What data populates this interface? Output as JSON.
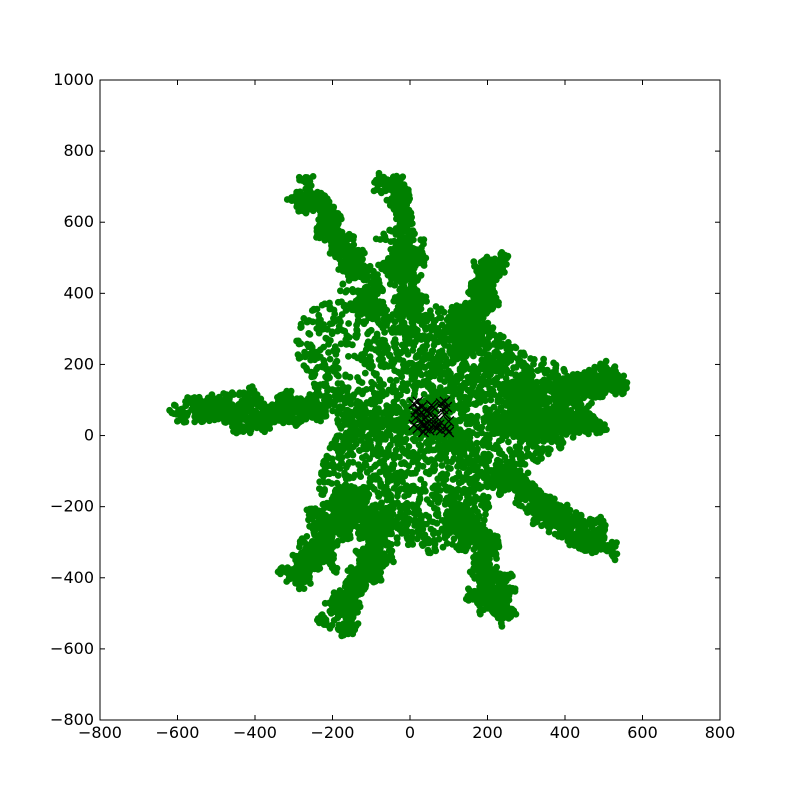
{
  "chart_data": {
    "type": "scatter",
    "title": "",
    "xlabel": "",
    "ylabel": "",
    "xlim": [
      -800,
      800
    ],
    "ylim": [
      -800,
      1000
    ],
    "x_ticks": [
      -800,
      -600,
      -400,
      -200,
      0,
      200,
      400,
      600,
      800
    ],
    "y_ticks": [
      -800,
      -600,
      -400,
      -200,
      0,
      200,
      400,
      600,
      800,
      1000
    ],
    "grid": false,
    "legend": "none",
    "series": [
      {
        "marker": "filled-circle",
        "color": "#008000",
        "style": "dense random walk cloud",
        "center": [
          50,
          50
        ],
        "extent": {
          "x": [
            -590,
            550
          ],
          "y": [
            -560,
            740
          ]
        },
        "branches": [
          {
            "dir": "west",
            "tip": [
              -580,
              80
            ]
          },
          {
            "dir": "north-west",
            "tip": [
              -280,
              720
            ]
          },
          {
            "dir": "north",
            "tip": [
              -50,
              740
            ]
          },
          {
            "dir": "north-east",
            "tip": [
              220,
              500
            ]
          },
          {
            "dir": "east",
            "tip": [
              540,
              160
            ]
          },
          {
            "dir": "east-south-east",
            "tip": [
              480,
              40
            ]
          },
          {
            "dir": "south-east",
            "tip": [
              500,
              -320
            ]
          },
          {
            "dir": "south",
            "tip": [
              250,
              -530
            ]
          },
          {
            "dir": "south-west",
            "tip": [
              -200,
              -550
            ]
          },
          {
            "dir": "west-south-west",
            "tip": [
              -330,
              -420
            ]
          }
        ]
      },
      {
        "marker": "x",
        "color": "#000000",
        "points": [
          [
            10,
            90
          ],
          [
            20,
            95
          ],
          [
            30,
            80
          ],
          [
            25,
            60
          ],
          [
            15,
            50
          ],
          [
            10,
            30
          ],
          [
            20,
            20
          ],
          [
            30,
            40
          ],
          [
            40,
            50
          ],
          [
            45,
            35
          ],
          [
            50,
            60
          ],
          [
            55,
            45
          ],
          [
            60,
            30
          ],
          [
            40,
            20
          ],
          [
            35,
            10
          ],
          [
            50,
            15
          ],
          [
            65,
            25
          ],
          [
            70,
            20
          ],
          [
            75,
            30
          ],
          [
            80,
            90
          ],
          [
            90,
            95
          ],
          [
            85,
            75
          ],
          [
            95,
            80
          ],
          [
            90,
            60
          ],
          [
            100,
            40
          ],
          [
            95,
            20
          ],
          [
            100,
            10
          ],
          [
            80,
            15
          ],
          [
            45,
            70
          ],
          [
            30,
            65
          ],
          [
            20,
            75
          ],
          [
            15,
            65
          ],
          [
            60,
            80
          ],
          [
            70,
            50
          ],
          [
            55,
            85
          ],
          [
            35,
            30
          ]
        ]
      }
    ]
  }
}
